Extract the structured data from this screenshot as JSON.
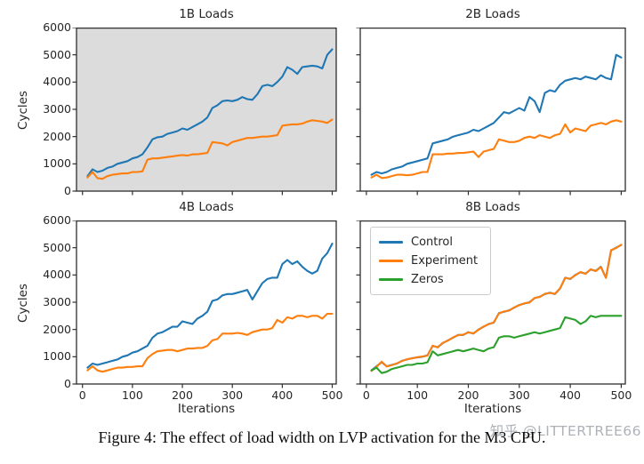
{
  "caption": "Figure 4: The effect of load width on LVP activation for the M3 CPU.",
  "watermark": "知乎 @LITTERTREE66",
  "axes": {
    "xlabel": "Iterations",
    "ylabel": "Cycles"
  },
  "colors": {
    "control": "#1f77b4",
    "experiment": "#ff7f0e",
    "zeros": "#2ca02c",
    "panel1_bg": "#dcdcdc",
    "panel_bg": "#ffffff",
    "spine": "#2e2e2e"
  },
  "legend": {
    "entries": [
      "Control",
      "Experiment",
      "Zeros"
    ],
    "position": "upper-left of 8B panel"
  },
  "chart_data": [
    {
      "type": "line",
      "title": "1B Loads",
      "plot_bg": "#dcdcdc",
      "xlabel": "Iterations",
      "ylabel": "Cycles",
      "xlim": [
        -12,
        508
      ],
      "ylim": [
        0,
        6000
      ],
      "grid": false,
      "xticks": [
        0,
        100,
        200,
        300,
        400,
        500
      ],
      "yticks": [
        0,
        1000,
        2000,
        3000,
        4000,
        5000,
        6000
      ],
      "x": [
        10,
        20,
        30,
        40,
        50,
        60,
        70,
        80,
        90,
        100,
        110,
        120,
        130,
        140,
        150,
        160,
        170,
        180,
        190,
        200,
        210,
        220,
        230,
        240,
        250,
        260,
        270,
        280,
        290,
        300,
        310,
        320,
        330,
        340,
        350,
        360,
        370,
        380,
        390,
        400,
        410,
        420,
        430,
        440,
        450,
        460,
        470,
        480,
        490,
        500
      ],
      "series": [
        {
          "name": "Control",
          "color": "#1f77b4",
          "values": [
            550,
            800,
            700,
            750,
            850,
            900,
            1000,
            1050,
            1100,
            1200,
            1250,
            1350,
            1600,
            1900,
            1975,
            2000,
            2100,
            2150,
            2200,
            2300,
            2250,
            2350,
            2450,
            2550,
            2700,
            3050,
            3150,
            3300,
            3325,
            3300,
            3350,
            3450,
            3375,
            3350,
            3550,
            3850,
            3900,
            3850,
            4000,
            4200,
            4550,
            4450,
            4300,
            4550,
            4575,
            4600,
            4575,
            4500,
            5000,
            5200
          ]
        },
        {
          "name": "Experiment",
          "color": "#ff7f0e",
          "values": [
            500,
            700,
            475,
            450,
            550,
            600,
            625,
            650,
            650,
            700,
            700,
            725,
            1150,
            1200,
            1200,
            1225,
            1250,
            1275,
            1300,
            1325,
            1300,
            1350,
            1350,
            1375,
            1400,
            1800,
            1775,
            1750,
            1675,
            1800,
            1850,
            1900,
            1950,
            1950,
            1975,
            2000,
            2000,
            2025,
            2050,
            2400,
            2425,
            2450,
            2450,
            2475,
            2550,
            2600,
            2575,
            2550,
            2500,
            2625
          ]
        }
      ]
    },
    {
      "type": "line",
      "title": "2B Loads",
      "plot_bg": "#ffffff",
      "xlabel": "Iterations",
      "ylabel": "Cycles",
      "xlim": [
        -12,
        508
      ],
      "ylim": [
        0,
        6000
      ],
      "grid": false,
      "xticks": [
        0,
        100,
        200,
        300,
        400,
        500
      ],
      "yticks": [
        0,
        1000,
        2000,
        3000,
        4000,
        5000,
        6000
      ],
      "x": [
        10,
        20,
        30,
        40,
        50,
        60,
        70,
        80,
        90,
        100,
        110,
        120,
        130,
        140,
        150,
        160,
        170,
        180,
        190,
        200,
        210,
        220,
        230,
        240,
        250,
        260,
        270,
        280,
        290,
        300,
        310,
        320,
        330,
        340,
        350,
        360,
        370,
        380,
        390,
        400,
        410,
        420,
        430,
        440,
        450,
        460,
        470,
        480,
        490,
        500
      ],
      "series": [
        {
          "name": "Control",
          "color": "#1f77b4",
          "values": [
            600,
            700,
            650,
            700,
            800,
            850,
            900,
            1000,
            1050,
            1100,
            1150,
            1200,
            1750,
            1800,
            1850,
            1900,
            2000,
            2050,
            2100,
            2150,
            2250,
            2200,
            2300,
            2400,
            2500,
            2700,
            2900,
            2850,
            2950,
            3050,
            2950,
            3450,
            3300,
            2900,
            3600,
            3700,
            3650,
            3900,
            4050,
            4100,
            4150,
            4100,
            4200,
            4150,
            4100,
            4250,
            4150,
            4100,
            5000,
            4900
          ]
        },
        {
          "name": "Experiment",
          "color": "#ff7f0e",
          "values": [
            500,
            600,
            480,
            500,
            550,
            600,
            600,
            580,
            600,
            650,
            700,
            700,
            1350,
            1350,
            1350,
            1375,
            1375,
            1400,
            1400,
            1425,
            1450,
            1250,
            1450,
            1500,
            1550,
            1900,
            1850,
            1800,
            1800,
            1850,
            1950,
            2000,
            1950,
            2050,
            2000,
            1950,
            2050,
            2100,
            2450,
            2150,
            2300,
            2250,
            2200,
            2400,
            2450,
            2500,
            2450,
            2550,
            2600,
            2550
          ]
        }
      ]
    },
    {
      "type": "line",
      "title": "4B Loads",
      "plot_bg": "#ffffff",
      "xlabel": "Iterations",
      "ylabel": "Cycles",
      "xlim": [
        -12,
        508
      ],
      "ylim": [
        0,
        6000
      ],
      "grid": false,
      "xticks": [
        0,
        100,
        200,
        300,
        400,
        500
      ],
      "yticks": [
        0,
        1000,
        2000,
        3000,
        4000,
        5000,
        6000
      ],
      "x": [
        10,
        20,
        30,
        40,
        50,
        60,
        70,
        80,
        90,
        100,
        110,
        120,
        130,
        140,
        150,
        160,
        170,
        180,
        190,
        200,
        210,
        220,
        230,
        240,
        250,
        260,
        270,
        280,
        290,
        300,
        310,
        320,
        330,
        340,
        350,
        360,
        370,
        380,
        390,
        400,
        410,
        420,
        430,
        440,
        450,
        460,
        470,
        480,
        490,
        500
      ],
      "series": [
        {
          "name": "Control",
          "color": "#1f77b4",
          "values": [
            600,
            750,
            700,
            750,
            800,
            850,
            900,
            1000,
            1050,
            1150,
            1200,
            1300,
            1400,
            1700,
            1850,
            1900,
            2000,
            2100,
            2100,
            2300,
            2250,
            2200,
            2400,
            2500,
            2650,
            3050,
            3100,
            3250,
            3300,
            3300,
            3350,
            3400,
            3450,
            3100,
            3400,
            3700,
            3850,
            3900,
            3900,
            4400,
            4550,
            4400,
            4500,
            4300,
            4150,
            4050,
            4150,
            4600,
            4800,
            5150
          ]
        },
        {
          "name": "Experiment",
          "color": "#ff7f0e",
          "values": [
            500,
            650,
            500,
            450,
            500,
            550,
            600,
            600,
            625,
            625,
            650,
            650,
            950,
            1100,
            1200,
            1225,
            1250,
            1250,
            1200,
            1250,
            1300,
            1300,
            1325,
            1325,
            1400,
            1600,
            1650,
            1850,
            1850,
            1850,
            1875,
            1850,
            1800,
            1900,
            1950,
            2000,
            2000,
            2050,
            2350,
            2250,
            2450,
            2400,
            2500,
            2500,
            2450,
            2500,
            2500,
            2400,
            2575,
            2575
          ]
        }
      ]
    },
    {
      "type": "line",
      "title": "8B Loads",
      "plot_bg": "#ffffff",
      "xlabel": "Iterations",
      "ylabel": "Cycles",
      "xlim": [
        -12,
        508
      ],
      "ylim": [
        0,
        6000
      ],
      "grid": false,
      "legend": true,
      "xticks": [
        0,
        100,
        200,
        300,
        400,
        500
      ],
      "yticks": [
        0,
        1000,
        2000,
        3000,
        4000,
        5000,
        6000
      ],
      "x": [
        10,
        20,
        30,
        40,
        50,
        60,
        70,
        80,
        90,
        100,
        110,
        120,
        130,
        140,
        150,
        160,
        170,
        180,
        190,
        200,
        210,
        220,
        230,
        240,
        250,
        260,
        270,
        280,
        290,
        300,
        310,
        320,
        330,
        340,
        350,
        360,
        370,
        380,
        390,
        400,
        410,
        420,
        430,
        440,
        450,
        460,
        470,
        480,
        490,
        500
      ],
      "series": [
        {
          "name": "Control",
          "color": "#1f77b4",
          "values": [
            500,
            650,
            800,
            650,
            700,
            750,
            850,
            900,
            950,
            975,
            1000,
            1050,
            1400,
            1350,
            1500,
            1600,
            1700,
            1800,
            1800,
            1900,
            1850,
            2000,
            2100,
            2200,
            2250,
            2600,
            2650,
            2700,
            2800,
            2900,
            2950,
            3000,
            3150,
            3200,
            3300,
            3350,
            3300,
            3500,
            3900,
            3850,
            4000,
            4100,
            4050,
            4200,
            4150,
            4300,
            3900,
            4900,
            5000,
            5100
          ]
        },
        {
          "name": "Experiment",
          "color": "#ff7f0e",
          "values": [
            480,
            630,
            820,
            640,
            690,
            760,
            840,
            910,
            940,
            985,
            1010,
            1040,
            1410,
            1340,
            1510,
            1590,
            1710,
            1790,
            1810,
            1890,
            1860,
            1990,
            2110,
            2190,
            2260,
            2590,
            2660,
            2690,
            2810,
            2890,
            2960,
            2990,
            3160,
            3190,
            3310,
            3340,
            3310,
            3510,
            3890,
            3860,
            3990,
            4110,
            4040,
            4210,
            4140,
            4290,
            3890,
            4910,
            4990,
            5110
          ]
        },
        {
          "name": "Zeros",
          "color": "#2ca02c",
          "values": [
            500,
            600,
            400,
            450,
            550,
            600,
            650,
            700,
            700,
            750,
            750,
            800,
            1200,
            1050,
            1100,
            1150,
            1200,
            1250,
            1200,
            1250,
            1300,
            1250,
            1200,
            1300,
            1350,
            1700,
            1750,
            1750,
            1700,
            1750,
            1800,
            1850,
            1900,
            1850,
            1900,
            1950,
            2000,
            2050,
            2450,
            2400,
            2350,
            2200,
            2300,
            2500,
            2450,
            2500,
            2500,
            2500,
            2500,
            2500
          ]
        }
      ]
    }
  ]
}
